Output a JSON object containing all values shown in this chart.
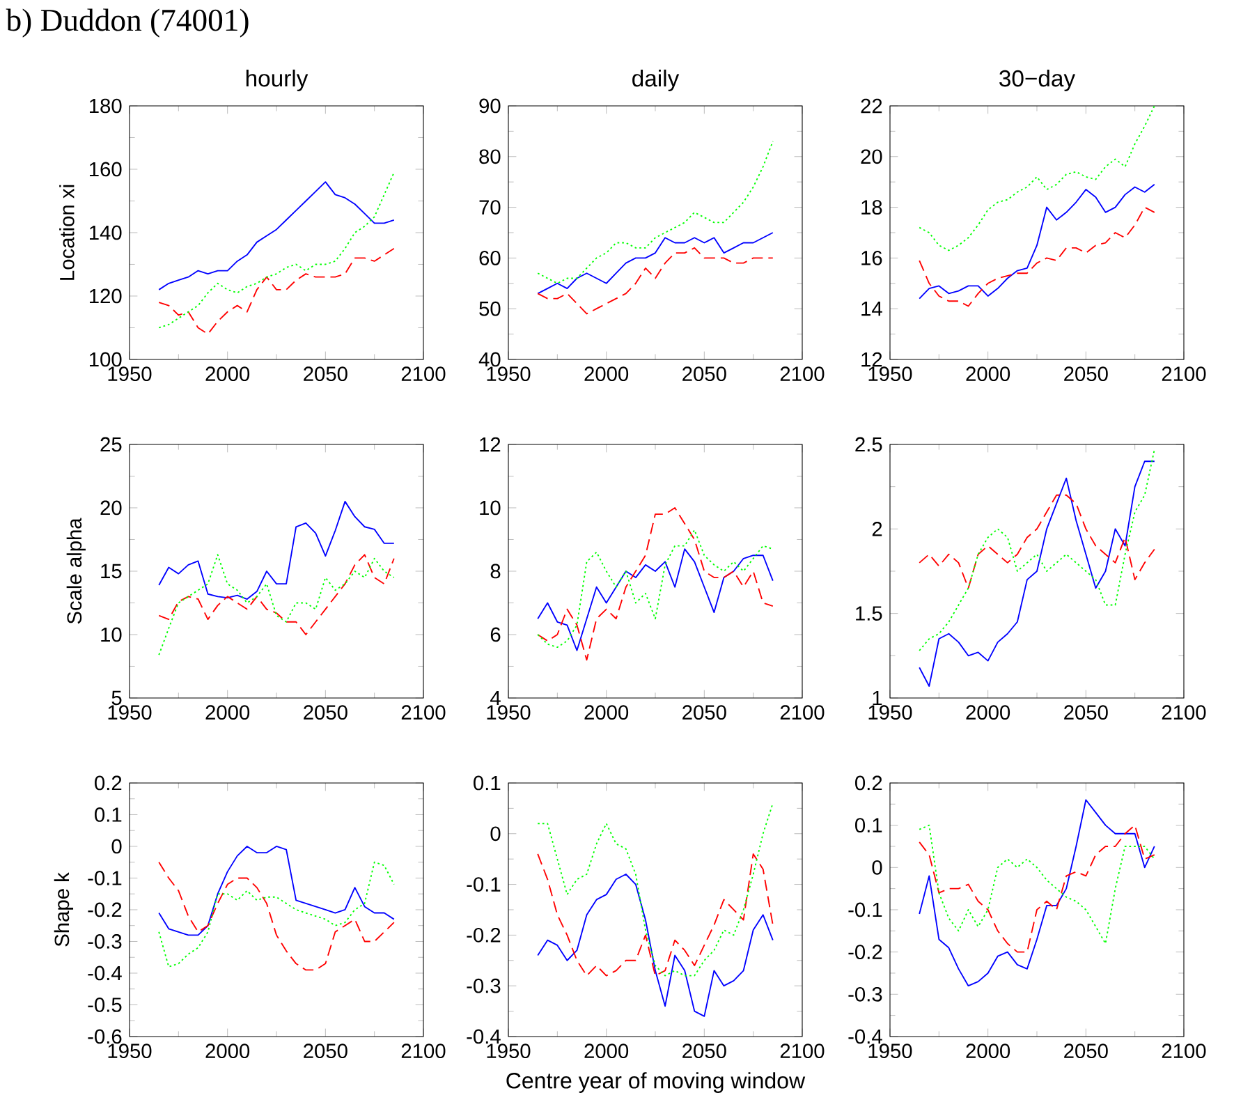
{
  "chart_data": [
    {
      "type": "line",
      "title": "hourly",
      "ylabel": "Location xi",
      "annotations": [
        "b) Duddon (74001)"
      ],
      "xlim": [
        1950,
        2100
      ],
      "xticks": [
        1950,
        2000,
        2050,
        2100
      ],
      "ylim": [
        100,
        180
      ],
      "yticks": [
        100,
        120,
        140,
        160,
        180
      ],
      "x": [
        1965,
        1970,
        1975,
        1980,
        1985,
        1990,
        1995,
        2000,
        2005,
        2010,
        2015,
        2020,
        2025,
        2030,
        2035,
        2040,
        2045,
        2050,
        2055,
        2060,
        2065,
        2070,
        2075,
        2080,
        2085
      ],
      "series": [
        {
          "color": "#0000ff",
          "line_style": "solid",
          "values": [
            122,
            124,
            125,
            126,
            128,
            127,
            128,
            128,
            131,
            133,
            137,
            139,
            141,
            144,
            147,
            150,
            153,
            156,
            152,
            151,
            149,
            146,
            143,
            143,
            144
          ]
        },
        {
          "color": "#ff0000",
          "line_style": "dashed",
          "values": [
            118,
            117,
            114,
            115,
            110,
            108,
            112,
            115,
            117,
            115,
            122,
            126,
            122,
            122,
            125,
            127,
            126,
            126,
            126,
            127,
            132,
            132,
            131,
            133,
            135
          ]
        },
        {
          "color": "#00ff00",
          "line_style": "dotted",
          "values": [
            110,
            111,
            113,
            115,
            117,
            121,
            124,
            122,
            121,
            123,
            124,
            126,
            127,
            129,
            130,
            128,
            130,
            130,
            131,
            135,
            140,
            142,
            145,
            152,
            159
          ]
        }
      ]
    },
    {
      "type": "line",
      "title": "daily",
      "xlim": [
        1950,
        2100
      ],
      "xticks": [
        1950,
        2000,
        2050,
        2100
      ],
      "ylim": [
        40,
        90
      ],
      "yticks": [
        40,
        50,
        60,
        70,
        80,
        90
      ],
      "x": [
        1965,
        1970,
        1975,
        1980,
        1985,
        1990,
        1995,
        2000,
        2005,
        2010,
        2015,
        2020,
        2025,
        2030,
        2035,
        2040,
        2045,
        2050,
        2055,
        2060,
        2065,
        2070,
        2075,
        2080,
        2085
      ],
      "series": [
        {
          "color": "#0000ff",
          "line_style": "solid",
          "values": [
            53,
            54,
            55,
            54,
            56,
            57,
            56,
            55,
            57,
            59,
            60,
            60,
            61,
            64,
            63,
            63,
            64,
            63,
            64,
            61,
            62,
            63,
            63,
            64,
            65
          ]
        },
        {
          "color": "#ff0000",
          "line_style": "dashed",
          "values": [
            53,
            52,
            52,
            53,
            51,
            49,
            50,
            51,
            52,
            53,
            55,
            58,
            56,
            59,
            61,
            61,
            62,
            60,
            60,
            60,
            59,
            59,
            60,
            60,
            60
          ]
        },
        {
          "color": "#00ff00",
          "line_style": "dotted",
          "values": [
            57,
            56,
            55,
            56,
            56,
            58,
            60,
            61,
            63,
            63,
            62,
            62,
            64,
            65,
            66,
            67,
            69,
            68,
            67,
            67,
            69,
            71,
            74,
            78,
            83
          ]
        }
      ]
    },
    {
      "type": "line",
      "title": "30−day",
      "xlim": [
        1950,
        2100
      ],
      "xticks": [
        1950,
        2000,
        2050,
        2100
      ],
      "ylim": [
        12,
        22
      ],
      "yticks": [
        12,
        14,
        16,
        18,
        20,
        22
      ],
      "x": [
        1965,
        1970,
        1975,
        1980,
        1985,
        1990,
        1995,
        2000,
        2005,
        2010,
        2015,
        2020,
        2025,
        2030,
        2035,
        2040,
        2045,
        2050,
        2055,
        2060,
        2065,
        2070,
        2075,
        2080,
        2085
      ],
      "series": [
        {
          "color": "#0000ff",
          "line_style": "solid",
          "values": [
            14.4,
            14.8,
            14.9,
            14.6,
            14.7,
            14.9,
            14.9,
            14.5,
            14.8,
            15.2,
            15.5,
            15.6,
            16.5,
            18.0,
            17.5,
            17.8,
            18.2,
            18.7,
            18.4,
            17.8,
            18.0,
            18.5,
            18.8,
            18.6,
            18.9
          ]
        },
        {
          "color": "#ff0000",
          "line_style": "dashed",
          "values": [
            15.9,
            15.0,
            14.5,
            14.3,
            14.3,
            14.1,
            14.6,
            15.0,
            15.2,
            15.3,
            15.4,
            15.4,
            15.8,
            16.0,
            15.9,
            16.4,
            16.4,
            16.2,
            16.5,
            16.6,
            17.0,
            16.8,
            17.3,
            18.0,
            17.8
          ]
        },
        {
          "color": "#00ff00",
          "line_style": "dotted",
          "values": [
            17.2,
            17.0,
            16.5,
            16.3,
            16.5,
            16.8,
            17.3,
            17.9,
            18.2,
            18.3,
            18.6,
            18.8,
            19.2,
            18.7,
            18.9,
            19.3,
            19.4,
            19.2,
            19.1,
            19.6,
            19.9,
            19.6,
            20.5,
            21.2,
            22.0
          ]
        }
      ]
    },
    {
      "type": "line",
      "ylabel": "Scale alpha",
      "xlim": [
        1950,
        2100
      ],
      "xticks": [
        1950,
        2000,
        2050,
        2100
      ],
      "ylim": [
        5,
        25
      ],
      "yticks": [
        5,
        10,
        15,
        20,
        25
      ],
      "x": [
        1965,
        1970,
        1975,
        1980,
        1985,
        1990,
        1995,
        2000,
        2005,
        2010,
        2015,
        2020,
        2025,
        2030,
        2035,
        2040,
        2045,
        2050,
        2055,
        2060,
        2065,
        2070,
        2075,
        2080,
        2085
      ],
      "series": [
        {
          "color": "#0000ff",
          "line_style": "solid",
          "values": [
            13.9,
            15.3,
            14.8,
            15.5,
            15.8,
            13.2,
            13.0,
            12.9,
            13.1,
            12.8,
            13.4,
            15.0,
            14.0,
            14.0,
            18.5,
            18.8,
            18.0,
            16.2,
            18.2,
            20.5,
            19.3,
            18.5,
            18.3,
            17.2,
            17.2
          ]
        },
        {
          "color": "#ff0000",
          "line_style": "dashed",
          "values": [
            11.5,
            11.2,
            12.6,
            13.0,
            12.8,
            11.2,
            12.3,
            13.0,
            12.5,
            12.0,
            13.0,
            12.0,
            11.7,
            11.0,
            11.0,
            10.0,
            11.0,
            12.0,
            13.0,
            14.0,
            15.5,
            16.3,
            14.5,
            14.0,
            16.0
          ]
        },
        {
          "color": "#00ff00",
          "line_style": "dotted",
          "values": [
            8.4,
            10.5,
            12.5,
            13.0,
            13.5,
            14.0,
            16.3,
            14.0,
            13.5,
            12.5,
            13.0,
            14.0,
            11.5,
            11.0,
            12.5,
            12.5,
            12.0,
            14.5,
            13.5,
            14.0,
            15.0,
            14.5,
            16.0,
            15.0,
            14.5
          ]
        }
      ]
    },
    {
      "type": "line",
      "xlim": [
        1950,
        2100
      ],
      "xticks": [
        1950,
        2000,
        2050,
        2100
      ],
      "ylim": [
        4,
        12
      ],
      "yticks": [
        4,
        6,
        8,
        10,
        12
      ],
      "x": [
        1965,
        1970,
        1975,
        1980,
        1985,
        1990,
        1995,
        2000,
        2005,
        2010,
        2015,
        2020,
        2025,
        2030,
        2035,
        2040,
        2045,
        2050,
        2055,
        2060,
        2065,
        2070,
        2075,
        2080,
        2085
      ],
      "series": [
        {
          "color": "#0000ff",
          "line_style": "solid",
          "values": [
            6.5,
            7.0,
            6.4,
            6.3,
            5.5,
            6.5,
            7.5,
            7.0,
            7.5,
            8.0,
            7.8,
            8.2,
            8.0,
            8.3,
            7.5,
            8.7,
            8.3,
            7.5,
            6.7,
            7.8,
            8.0,
            8.4,
            8.5,
            8.5,
            7.7
          ]
        },
        {
          "color": "#ff0000",
          "line_style": "dashed",
          "values": [
            6.0,
            5.8,
            6.0,
            6.8,
            6.3,
            5.2,
            6.5,
            6.8,
            6.5,
            7.5,
            8.0,
            8.5,
            9.8,
            9.8,
            10.0,
            9.5,
            9.0,
            8.0,
            7.8,
            7.8,
            8.0,
            7.5,
            8.0,
            7.0,
            6.9
          ]
        },
        {
          "color": "#00ff00",
          "line_style": "dotted",
          "values": [
            6.0,
            5.7,
            5.6,
            5.8,
            6.3,
            8.3,
            8.6,
            8.0,
            7.5,
            8.0,
            7.0,
            7.3,
            6.5,
            8.2,
            8.8,
            8.8,
            9.3,
            8.5,
            8.2,
            8.0,
            8.3,
            8.0,
            8.4,
            8.8,
            8.7
          ]
        }
      ]
    },
    {
      "type": "line",
      "xlim": [
        1950,
        2100
      ],
      "xticks": [
        1950,
        2000,
        2050,
        2100
      ],
      "ylim": [
        1,
        2.5
      ],
      "yticks": [
        1,
        1.5,
        2,
        2.5
      ],
      "x": [
        1965,
        1970,
        1975,
        1980,
        1985,
        1990,
        1995,
        2000,
        2005,
        2010,
        2015,
        2020,
        2025,
        2030,
        2035,
        2040,
        2045,
        2050,
        2055,
        2060,
        2065,
        2070,
        2075,
        2080,
        2085
      ],
      "series": [
        {
          "color": "#0000ff",
          "line_style": "solid",
          "values": [
            1.18,
            1.07,
            1.35,
            1.38,
            1.33,
            1.25,
            1.27,
            1.22,
            1.33,
            1.38,
            1.45,
            1.7,
            1.75,
            2.0,
            2.15,
            2.3,
            2.05,
            1.85,
            1.65,
            1.75,
            2.0,
            1.9,
            2.25,
            2.4,
            2.4
          ]
        },
        {
          "color": "#ff0000",
          "line_style": "dashed",
          "values": [
            1.8,
            1.85,
            1.78,
            1.85,
            1.8,
            1.65,
            1.85,
            1.9,
            1.85,
            1.8,
            1.85,
            1.95,
            2.0,
            2.1,
            2.2,
            2.2,
            2.15,
            2.0,
            1.9,
            1.85,
            1.8,
            1.95,
            1.7,
            1.8,
            1.88
          ]
        },
        {
          "color": "#00ff00",
          "line_style": "dotted",
          "values": [
            1.28,
            1.35,
            1.38,
            1.45,
            1.55,
            1.65,
            1.85,
            1.95,
            2.0,
            1.95,
            1.75,
            1.8,
            1.85,
            1.75,
            1.8,
            1.85,
            1.8,
            1.75,
            1.7,
            1.55,
            1.55,
            1.85,
            2.1,
            2.2,
            2.47
          ]
        }
      ]
    },
    {
      "type": "line",
      "ylabel": "Shape k",
      "xlim": [
        1950,
        2100
      ],
      "xticks": [
        1950,
        2000,
        2050,
        2100
      ],
      "ylim": [
        -0.6,
        0.2
      ],
      "yticks": [
        -0.6,
        -0.5,
        -0.4,
        -0.3,
        -0.2,
        -0.1,
        0,
        0.1,
        0.2
      ],
      "x": [
        1965,
        1970,
        1975,
        1980,
        1985,
        1990,
        1995,
        2000,
        2005,
        2010,
        2015,
        2020,
        2025,
        2030,
        2035,
        2040,
        2045,
        2050,
        2055,
        2060,
        2065,
        2070,
        2075,
        2080,
        2085
      ],
      "series": [
        {
          "color": "#0000ff",
          "line_style": "solid",
          "values": [
            -0.21,
            -0.26,
            -0.27,
            -0.28,
            -0.28,
            -0.25,
            -0.15,
            -0.08,
            -0.03,
            0,
            -0.02,
            -0.02,
            0,
            -0.01,
            -0.17,
            -0.18,
            -0.19,
            -0.2,
            -0.21,
            -0.2,
            -0.13,
            -0.19,
            -0.21,
            -0.21,
            -0.23
          ]
        },
        {
          "color": "#ff0000",
          "line_style": "dashed",
          "values": [
            -0.05,
            -0.1,
            -0.14,
            -0.22,
            -0.27,
            -0.25,
            -0.18,
            -0.12,
            -0.1,
            -0.1,
            -0.13,
            -0.18,
            -0.28,
            -0.33,
            -0.37,
            -0.39,
            -0.39,
            -0.37,
            -0.27,
            -0.25,
            -0.23,
            -0.3,
            -0.3,
            -0.27,
            -0.24
          ]
        },
        {
          "color": "#00ff00",
          "line_style": "dotted",
          "values": [
            -0.27,
            -0.38,
            -0.37,
            -0.34,
            -0.32,
            -0.27,
            -0.15,
            -0.15,
            -0.17,
            -0.14,
            -0.17,
            -0.16,
            -0.16,
            -0.18,
            -0.2,
            -0.21,
            -0.22,
            -0.23,
            -0.25,
            -0.24,
            -0.2,
            -0.18,
            -0.05,
            -0.06,
            -0.12
          ]
        }
      ]
    },
    {
      "type": "line",
      "xlabel": "Centre year of moving window",
      "xlim": [
        1950,
        2100
      ],
      "xticks": [
        1950,
        2000,
        2050,
        2100
      ],
      "ylim": [
        -0.4,
        0.1
      ],
      "yticks": [
        -0.4,
        -0.3,
        -0.2,
        -0.1,
        0,
        0.1
      ],
      "x": [
        1965,
        1970,
        1975,
        1980,
        1985,
        1990,
        1995,
        2000,
        2005,
        2010,
        2015,
        2020,
        2025,
        2030,
        2035,
        2040,
        2045,
        2050,
        2055,
        2060,
        2065,
        2070,
        2075,
        2080,
        2085
      ],
      "series": [
        {
          "color": "#0000ff",
          "line_style": "solid",
          "values": [
            -0.24,
            -0.21,
            -0.22,
            -0.25,
            -0.23,
            -0.16,
            -0.13,
            -0.12,
            -0.09,
            -0.08,
            -0.1,
            -0.17,
            -0.27,
            -0.34,
            -0.24,
            -0.27,
            -0.35,
            -0.36,
            -0.27,
            -0.3,
            -0.29,
            -0.27,
            -0.19,
            -0.16,
            -0.21
          ]
        },
        {
          "color": "#ff0000",
          "line_style": "dashed",
          "values": [
            -0.04,
            -0.09,
            -0.16,
            -0.2,
            -0.25,
            -0.28,
            -0.26,
            -0.28,
            -0.27,
            -0.25,
            -0.25,
            -0.2,
            -0.28,
            -0.27,
            -0.21,
            -0.23,
            -0.26,
            -0.22,
            -0.18,
            -0.13,
            -0.15,
            -0.17,
            -0.04,
            -0.07,
            -0.18
          ]
        },
        {
          "color": "#00ff00",
          "line_style": "dotted",
          "values": [
            0.02,
            0.02,
            -0.05,
            -0.12,
            -0.09,
            -0.08,
            -0.02,
            0.02,
            -0.02,
            -0.03,
            -0.08,
            -0.19,
            -0.26,
            -0.28,
            -0.27,
            -0.28,
            -0.28,
            -0.25,
            -0.23,
            -0.19,
            -0.2,
            -0.15,
            -0.08,
            0.0,
            0.06
          ]
        }
      ]
    },
    {
      "type": "line",
      "xlim": [
        1950,
        2100
      ],
      "xticks": [
        1950,
        2000,
        2050,
        2100
      ],
      "ylim": [
        -0.4,
        0.2
      ],
      "yticks": [
        -0.4,
        -0.3,
        -0.2,
        -0.1,
        0,
        0.1,
        0.2
      ],
      "x": [
        1965,
        1970,
        1975,
        1980,
        1985,
        1990,
        1995,
        2000,
        2005,
        2010,
        2015,
        2020,
        2025,
        2030,
        2035,
        2040,
        2045,
        2050,
        2055,
        2060,
        2065,
        2070,
        2075,
        2080,
        2085
      ],
      "series": [
        {
          "color": "#0000ff",
          "line_style": "solid",
          "values": [
            -0.11,
            -0.02,
            -0.17,
            -0.19,
            -0.24,
            -0.28,
            -0.27,
            -0.25,
            -0.21,
            -0.2,
            -0.23,
            -0.24,
            -0.17,
            -0.09,
            -0.09,
            -0.05,
            0.05,
            0.16,
            0.13,
            0.1,
            0.08,
            0.08,
            0.08,
            0.0,
            0.05
          ]
        },
        {
          "color": "#ff0000",
          "line_style": "dashed",
          "values": [
            0.06,
            0.03,
            -0.06,
            -0.05,
            -0.05,
            -0.04,
            -0.08,
            -0.1,
            -0.15,
            -0.18,
            -0.2,
            -0.2,
            -0.1,
            -0.08,
            -0.1,
            -0.02,
            -0.01,
            -0.02,
            0.03,
            0.05,
            0.05,
            0.08,
            0.1,
            0.02,
            0.03
          ]
        },
        {
          "color": "#00ff00",
          "line_style": "dotted",
          "values": [
            0.09,
            0.1,
            -0.06,
            -0.12,
            -0.15,
            -0.1,
            -0.14,
            -0.1,
            0.0,
            0.02,
            0.0,
            0.02,
            0.0,
            -0.03,
            -0.05,
            -0.07,
            -0.08,
            -0.1,
            -0.14,
            -0.18,
            -0.05,
            0.05,
            0.05,
            0.05,
            0.02
          ]
        }
      ]
    }
  ]
}
